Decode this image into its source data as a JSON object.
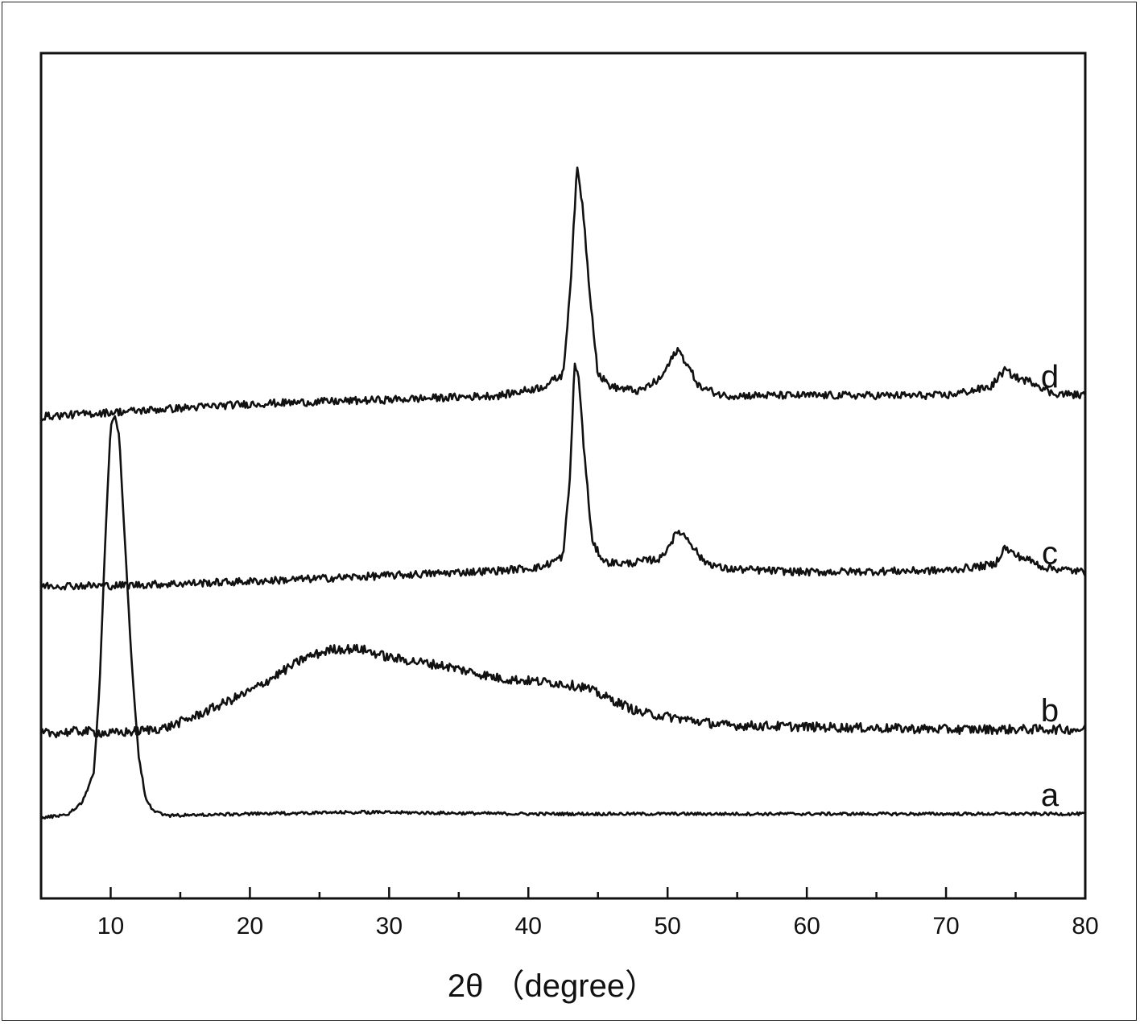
{
  "chart_data": {
    "type": "line",
    "xlabel": "2θ （degree）",
    "ylabel": "",
    "xlim": [
      5,
      80
    ],
    "ylim": [
      0,
      100
    ],
    "xticks": [
      10,
      20,
      30,
      40,
      50,
      60,
      70,
      80
    ],
    "grid": false,
    "legend": "none",
    "series": [
      {
        "name": "a",
        "points": [
          [
            5,
            9.5
          ],
          [
            7,
            10
          ],
          [
            8,
            11.5
          ],
          [
            8.8,
            15
          ],
          [
            9.2,
            25
          ],
          [
            9.6,
            42
          ],
          [
            10,
            56
          ],
          [
            10.3,
            57
          ],
          [
            10.6,
            55
          ],
          [
            11,
            43
          ],
          [
            11.5,
            28
          ],
          [
            12,
            17
          ],
          [
            12.5,
            12
          ],
          [
            13,
            10.5
          ],
          [
            14,
            9.8
          ],
          [
            20,
            10
          ],
          [
            28,
            10.2
          ],
          [
            40,
            10
          ],
          [
            50,
            10
          ],
          [
            60,
            10
          ],
          [
            70,
            10
          ],
          [
            80,
            10
          ]
        ]
      },
      {
        "name": "b",
        "points": [
          [
            5,
            19.5
          ],
          [
            8,
            19.8
          ],
          [
            10,
            19.5
          ],
          [
            12,
            19.8
          ],
          [
            14,
            20.2
          ],
          [
            16,
            21.5
          ],
          [
            18,
            23
          ],
          [
            20,
            24.5
          ],
          [
            22,
            26.5
          ],
          [
            24,
            28.5
          ],
          [
            26,
            29.5
          ],
          [
            28,
            29.5
          ],
          [
            30,
            28.5
          ],
          [
            34,
            27.5
          ],
          [
            38,
            26
          ],
          [
            42,
            25.5
          ],
          [
            44,
            25
          ],
          [
            46,
            23.5
          ],
          [
            48,
            22
          ],
          [
            50,
            21.5
          ],
          [
            54,
            20.5
          ],
          [
            60,
            20.3
          ],
          [
            70,
            20
          ],
          [
            80,
            20
          ]
        ]
      },
      {
        "name": "c",
        "points": [
          [
            5,
            37
          ],
          [
            10,
            37
          ],
          [
            20,
            37.5
          ],
          [
            30,
            38.2
          ],
          [
            38,
            38.8
          ],
          [
            41,
            39.2
          ],
          [
            42.5,
            40.5
          ],
          [
            43,
            50
          ],
          [
            43.3,
            63
          ],
          [
            43.6,
            62
          ],
          [
            44,
            53
          ],
          [
            44.6,
            42
          ],
          [
            45.5,
            39.8
          ],
          [
            47,
            39.6
          ],
          [
            49.5,
            40.2
          ],
          [
            50.3,
            42.3
          ],
          [
            50.8,
            43.5
          ],
          [
            51.5,
            42.5
          ],
          [
            52.5,
            40
          ],
          [
            54,
            39
          ],
          [
            60,
            38.6
          ],
          [
            70,
            38.8
          ],
          [
            73.5,
            39.5
          ],
          [
            74.2,
            41.5
          ],
          [
            75,
            40.6
          ],
          [
            76,
            40
          ],
          [
            77,
            39.2
          ],
          [
            80,
            38.6
          ]
        ]
      },
      {
        "name": "d",
        "points": [
          [
            5,
            57
          ],
          [
            10,
            57.5
          ],
          [
            20,
            58.5
          ],
          [
            30,
            59
          ],
          [
            38,
            59.5
          ],
          [
            41,
            60.5
          ],
          [
            42.5,
            62
          ],
          [
            43,
            72
          ],
          [
            43.5,
            86.5
          ],
          [
            43.9,
            82
          ],
          [
            44.4,
            72
          ],
          [
            45,
            62
          ],
          [
            46,
            60.5
          ],
          [
            48,
            60
          ],
          [
            49.5,
            61.5
          ],
          [
            50.2,
            63.5
          ],
          [
            50.7,
            65
          ],
          [
            51.3,
            63.5
          ],
          [
            52.3,
            60.5
          ],
          [
            54,
            59.5
          ],
          [
            60,
            59.5
          ],
          [
            70,
            59.5
          ],
          [
            73.2,
            60.5
          ],
          [
            74.2,
            62.5
          ],
          [
            75.2,
            61.5
          ],
          [
            76.4,
            61
          ],
          [
            77.5,
            59.8
          ],
          [
            80,
            59.5
          ]
        ]
      }
    ]
  }
}
